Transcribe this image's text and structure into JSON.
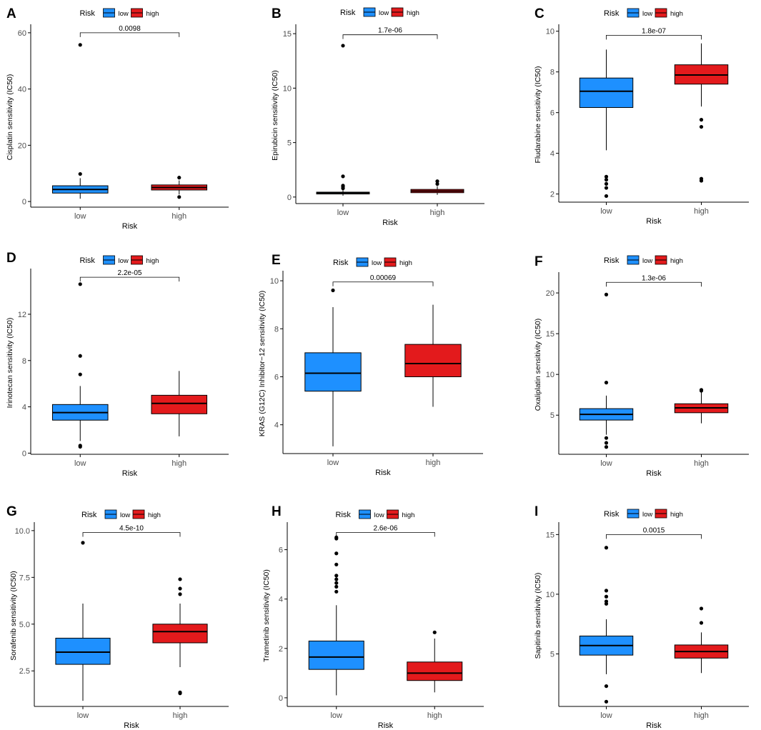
{
  "figure": {
    "colors": {
      "low": "#1E90FF",
      "high": "#E31A1C",
      "axis": "#000000",
      "text": "#4D4D4D"
    },
    "legend": {
      "title": "Risk",
      "low_label": "low",
      "high_label": "high"
    },
    "xlabel": "Risk"
  },
  "chart_data": [
    {
      "type": "box",
      "panel": "A",
      "ylabel": "Cisplatin sensitivity (IC50)",
      "categories": [
        "low",
        "high"
      ],
      "ylim": [
        -2,
        62
      ],
      "yticks": [
        0,
        20,
        40,
        60
      ],
      "ytick_labels": [
        "0",
        "20",
        "40",
        "60"
      ],
      "pvalue": "0.0098",
      "p_y": 60,
      "boxes": [
        {
          "group": "low",
          "q1": 3.0,
          "median": 4.3,
          "q3": 5.6,
          "wlo": 1.0,
          "whi": 8.3,
          "outliers": [
            9.8,
            55.7
          ]
        },
        {
          "group": "high",
          "q1": 4.1,
          "median": 5.0,
          "q3": 5.9,
          "wlo": 2.5,
          "whi": 7.5,
          "outliers": [
            8.5,
            1.6
          ]
        }
      ]
    },
    {
      "type": "box",
      "panel": "B",
      "ylabel": "Epirubicin sensitivity (IC50)",
      "categories": [
        "low",
        "high"
      ],
      "ylim": [
        -0.6,
        15.6
      ],
      "yticks": [
        0,
        5,
        10,
        15
      ],
      "ytick_labels": [
        "0",
        "5",
        "10",
        "15"
      ],
      "pvalue": "1.7e-06",
      "p_y": 14.9,
      "boxes": [
        {
          "group": "low",
          "q1": 0.28,
          "median": 0.35,
          "q3": 0.45,
          "wlo": 0.12,
          "whi": 0.7,
          "outliers": [
            0.8,
            0.95,
            1.05,
            1.9,
            13.9
          ]
        },
        {
          "group": "high",
          "q1": 0.4,
          "median": 0.55,
          "q3": 0.7,
          "wlo": 0.2,
          "whi": 1.0,
          "outliers": [
            1.2,
            1.45
          ]
        }
      ]
    },
    {
      "type": "box",
      "panel": "C",
      "ylabel": "Fludarabine sensitivity (IC50)",
      "categories": [
        "low",
        "high"
      ],
      "ylim": [
        1.6,
        10.2
      ],
      "yticks": [
        2,
        4,
        6,
        8,
        10
      ],
      "ytick_labels": [
        "2",
        "4",
        "6",
        "8",
        "10"
      ],
      "pvalue": "1.8e-07",
      "p_y": 9.8,
      "boxes": [
        {
          "group": "low",
          "q1": 6.25,
          "median": 7.05,
          "q3": 7.7,
          "wlo": 4.15,
          "whi": 9.1,
          "outliers": [
            2.85,
            2.7,
            2.5,
            2.3,
            1.9
          ]
        },
        {
          "group": "high",
          "q1": 7.4,
          "median": 7.85,
          "q3": 8.35,
          "wlo": 6.3,
          "whi": 9.4,
          "outliers": [
            5.65,
            5.3,
            2.75,
            2.65
          ]
        }
      ]
    },
    {
      "type": "box",
      "panel": "D",
      "ylabel": "Irinotecan sensitivity (IC50)",
      "categories": [
        "low",
        "high"
      ],
      "ylim": [
        -0.1,
        15.7
      ],
      "yticks": [
        0,
        4,
        8,
        12
      ],
      "ytick_labels": [
        "0",
        "4",
        "8",
        "12"
      ],
      "pvalue": "2.2e-05",
      "p_y": 15.2,
      "boxes": [
        {
          "group": "low",
          "q1": 2.85,
          "median": 3.5,
          "q3": 4.2,
          "wlo": 1.05,
          "whi": 5.8,
          "outliers": [
            6.8,
            8.4,
            14.6,
            0.65,
            0.55
          ]
        },
        {
          "group": "high",
          "q1": 3.4,
          "median": 4.3,
          "q3": 5.0,
          "wlo": 1.45,
          "whi": 7.1,
          "outliers": []
        }
      ]
    },
    {
      "type": "box",
      "panel": "E",
      "ylabel": "KRAS (G12C) Inhibitor−12 sensitivity (IC50)",
      "categories": [
        "low",
        "high"
      ],
      "ylim": [
        2.8,
        10.3
      ],
      "yticks": [
        4,
        6,
        8,
        10
      ],
      "ytick_labels": [
        "4",
        "6",
        "8",
        "10"
      ],
      "pvalue": "0.00069",
      "p_y": 9.95,
      "boxes": [
        {
          "group": "low",
          "q1": 5.4,
          "median": 6.15,
          "q3": 7.0,
          "wlo": 3.1,
          "whi": 8.9,
          "outliers": [
            9.6
          ]
        },
        {
          "group": "high",
          "q1": 6.0,
          "median": 6.55,
          "q3": 7.35,
          "wlo": 4.75,
          "whi": 9.0,
          "outliers": []
        }
      ]
    },
    {
      "type": "box",
      "panel": "F",
      "ylabel": "Oxaliplatin sensitivity (IC50)",
      "categories": [
        "low",
        "high"
      ],
      "ylim": [
        0.2,
        22.2
      ],
      "yticks": [
        5,
        10,
        15,
        20
      ],
      "ytick_labels": [
        "5",
        "10",
        "15",
        "20"
      ],
      "pvalue": "1.3e-06",
      "p_y": 21.3,
      "boxes": [
        {
          "group": "low",
          "q1": 4.4,
          "median": 5.1,
          "q3": 5.8,
          "wlo": 2.6,
          "whi": 7.4,
          "outliers": [
            9.0,
            19.8,
            2.2,
            1.6,
            1.1
          ]
        },
        {
          "group": "high",
          "q1": 5.3,
          "median": 5.9,
          "q3": 6.4,
          "wlo": 4.0,
          "whi": 7.9,
          "outliers": [
            8.1,
            8.0
          ]
        }
      ]
    },
    {
      "type": "box",
      "panel": "G",
      "ylabel": "Sorafenib sensitivity (IC50)",
      "categories": [
        "low",
        "high"
      ],
      "ylim": [
        0.6,
        10.3
      ],
      "yticks": [
        2.5,
        5.0,
        7.5,
        10.0
      ],
      "ytick_labels": [
        "2.5",
        "5.0",
        "7.5",
        "10.0"
      ],
      "pvalue": "4.5e-10",
      "p_y": 9.9,
      "boxes": [
        {
          "group": "low",
          "q1": 2.85,
          "median": 3.5,
          "q3": 4.25,
          "wlo": 0.9,
          "whi": 6.1,
          "outliers": [
            9.35
          ]
        },
        {
          "group": "high",
          "q1": 4.0,
          "median": 4.6,
          "q3": 5.0,
          "wlo": 2.7,
          "whi": 6.1,
          "outliers": [
            6.6,
            6.9,
            7.4,
            1.35,
            1.3
          ]
        }
      ]
    },
    {
      "type": "box",
      "panel": "H",
      "ylabel": "Trametinib sensitivity (IC50)",
      "categories": [
        "low",
        "high"
      ],
      "ylim": [
        -0.35,
        7.0
      ],
      "yticks": [
        0,
        2,
        4,
        6
      ],
      "ytick_labels": [
        "0",
        "2",
        "4",
        "6"
      ],
      "pvalue": "2.6e-06",
      "p_y": 6.7,
      "boxes": [
        {
          "group": "low",
          "q1": 1.15,
          "median": 1.65,
          "q3": 2.3,
          "wlo": 0.1,
          "whi": 3.75,
          "outliers": [
            4.3,
            4.5,
            4.65,
            4.8,
            4.95,
            5.4,
            5.85,
            6.45,
            6.5
          ]
        },
        {
          "group": "high",
          "q1": 0.7,
          "median": 1.0,
          "q3": 1.45,
          "wlo": 0.22,
          "whi": 2.4,
          "outliers": [
            2.65
          ]
        }
      ]
    },
    {
      "type": "box",
      "panel": "I",
      "ylabel": "Sapitinib sensitivity (IC50)",
      "categories": [
        "low",
        "high"
      ],
      "ylim": [
        0.6,
        15.8
      ],
      "yticks": [
        5,
        10,
        15
      ],
      "ytick_labels": [
        "5",
        "10",
        "15"
      ],
      "pvalue": "0.0015",
      "p_y": 15.0,
      "boxes": [
        {
          "group": "low",
          "q1": 4.9,
          "median": 5.7,
          "q3": 6.5,
          "wlo": 3.3,
          "whi": 7.9,
          "outliers": [
            9.2,
            9.4,
            9.8,
            10.3,
            13.9,
            2.3,
            1.0
          ]
        },
        {
          "group": "high",
          "q1": 4.65,
          "median": 5.2,
          "q3": 5.75,
          "wlo": 3.4,
          "whi": 6.8,
          "outliers": [
            7.6,
            8.8
          ]
        }
      ]
    }
  ]
}
